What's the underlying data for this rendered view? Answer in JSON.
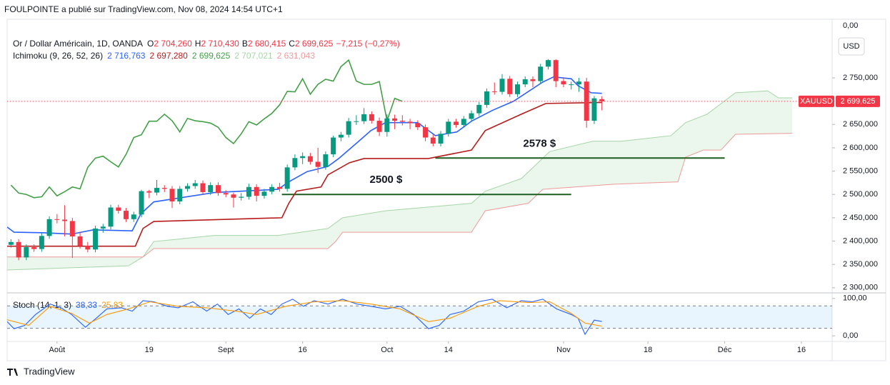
{
  "header": {
    "publisher": "FOULPOINTE a publié sur TradingView.com, Nov 08, 2024 14:54 UTC+1",
    "axis_top_label": "0,00",
    "currency_button": "USD",
    "brand": "TradingView"
  },
  "chart_data": {
    "type": "candlestick",
    "symbol_line": "Or / Dollar Américain, 1D, OANDA",
    "ohlc_legend": [
      {
        "key": "O",
        "text": "2 704,260"
      },
      {
        "key": "H",
        "text": "2 710,430"
      },
      {
        "key": "B",
        "text": "2 680,415"
      },
      {
        "key": "C",
        "text": "2 699,625"
      },
      {
        "text": "−7,215 (−0,27%)"
      }
    ],
    "indicator_label": "Ichimoku (9, 26, 52, 26)",
    "indicator_values": [
      {
        "text": "2 716,763",
        "color": "#2962ff"
      },
      {
        "text": "2 697,280",
        "color": "#b71c1c"
      },
      {
        "text": "2 699,625",
        "color": "#43a047"
      },
      {
        "text": "2 707,021",
        "color": "#a5d6a7"
      },
      {
        "text": "2 631,043",
        "color": "#ef9a9a"
      }
    ],
    "up_color": "#089981",
    "down_color": "#f23645",
    "x": [
      -6,
      -5,
      -4,
      -3,
      -2,
      -1,
      0,
      1,
      2,
      3,
      4,
      5,
      6,
      7,
      8,
      9,
      10,
      11,
      12,
      13,
      14,
      15,
      16,
      17,
      18,
      19,
      20,
      21,
      22,
      23,
      24,
      25,
      26,
      27,
      28,
      29,
      30,
      31,
      32,
      33,
      34,
      35,
      36,
      37,
      38,
      39,
      40,
      41,
      42,
      43,
      44,
      45,
      46,
      47,
      48,
      49,
      50,
      51,
      52,
      53,
      54,
      55,
      56,
      57,
      58,
      59,
      60,
      61,
      62,
      63,
      64,
      65,
      66,
      67,
      68,
      69,
      70,
      71
    ],
    "open": [
      2392,
      2398,
      2365,
      2387,
      2383,
      2411,
      2447,
      2446,
      2443,
      2410,
      2390,
      2382,
      2427,
      2431,
      2472,
      2465,
      2447,
      2457,
      2507,
      2504,
      2514,
      2512,
      2485,
      2512,
      2518,
      2524,
      2505,
      2520,
      2503,
      2500,
      2493,
      2495,
      2516,
      2497,
      2506,
      2516,
      2512,
      2558,
      2578,
      2582,
      2570,
      2559,
      2586,
      2622,
      2628,
      2657,
      2657,
      2672,
      2658,
      2634,
      2663,
      2658,
      2656,
      2653,
      2644,
      2622,
      2609,
      2630,
      2656,
      2649,
      2662,
      2674,
      2692,
      2721,
      2720,
      2748,
      2715,
      2736,
      2747,
      2743,
      2774,
      2788,
      2743,
      2736,
      2736,
      2742,
      2658,
      2704.26
    ],
    "high": [
      2404,
      2404,
      2393,
      2393,
      2417,
      2453,
      2458,
      2477,
      2450,
      2420,
      2398,
      2433,
      2437,
      2478,
      2478,
      2471,
      2463,
      2510,
      2510,
      2531,
      2520,
      2518,
      2518,
      2524,
      2531,
      2530,
      2526,
      2526,
      2509,
      2504,
      2503,
      2523,
      2522,
      2512,
      2522,
      2525,
      2564,
      2586,
      2590,
      2589,
      2600,
      2592,
      2626,
      2634,
      2664,
      2670,
      2685,
      2678,
      2665,
      2672,
      2671,
      2670,
      2662,
      2659,
      2650,
      2628,
      2636,
      2662,
      2662,
      2668,
      2680,
      2698,
      2727,
      2740,
      2758,
      2754,
      2742,
      2753,
      2753,
      2780,
      2790,
      2790,
      2750,
      2742,
      2750,
      2750,
      2711,
      2710.43
    ],
    "low": [
      2386,
      2359,
      2359,
      2377,
      2377,
      2405,
      2438,
      2410,
      2364,
      2384,
      2376,
      2376,
      2418,
      2425,
      2459,
      2441,
      2441,
      2451,
      2492,
      2498,
      2505,
      2471,
      2479,
      2506,
      2512,
      2499,
      2499,
      2497,
      2494,
      2472,
      2487,
      2489,
      2485,
      2491,
      2500,
      2506,
      2506,
      2552,
      2565,
      2564,
      2546,
      2553,
      2580,
      2614,
      2622,
      2649,
      2651,
      2652,
      2625,
      2624,
      2640,
      2648,
      2640,
      2638,
      2614,
      2603,
      2603,
      2624,
      2643,
      2643,
      2656,
      2668,
      2686,
      2714,
      2714,
      2709,
      2709,
      2730,
      2730,
      2737,
      2768,
      2730,
      2730,
      2725,
      2720,
      2643,
      2651,
      2680.415
    ],
    "close": [
      2398,
      2365,
      2387,
      2383,
      2411,
      2447,
      2446,
      2443,
      2410,
      2390,
      2382,
      2427,
      2431,
      2472,
      2465,
      2447,
      2457,
      2507,
      2504,
      2514,
      2512,
      2485,
      2512,
      2518,
      2524,
      2505,
      2520,
      2503,
      2500,
      2493,
      2495,
      2516,
      2497,
      2506,
      2516,
      2512,
      2558,
      2578,
      2582,
      2570,
      2559,
      2586,
      2622,
      2628,
      2657,
      2657,
      2672,
      2658,
      2634,
      2663,
      2658,
      2656,
      2653,
      2644,
      2622,
      2609,
      2630,
      2656,
      2649,
      2662,
      2674,
      2692,
      2721,
      2720,
      2748,
      2715,
      2736,
      2747,
      2743,
      2774,
      2788,
      2743,
      2736,
      2736,
      2742,
      2658,
      2706,
      2699.625
    ],
    "series": [
      {
        "color": "#2962ff",
        "x": [
          -6.5,
          -5.6,
          -1.9,
          1.9,
          4.7,
          9.8,
          10.9,
          12.6,
          20.5,
          28.8,
          30.2,
          32.6,
          35.3,
          36.7,
          39.1,
          40.9,
          42.8,
          47,
          49.3,
          52.1,
          54,
          56.7,
          59.5,
          63.3,
          64.7,
          67,
          67.9,
          69.6,
          71
        ],
        "values": [
          2430,
          2419,
          2418,
          2415,
          2424,
          2422,
          2458,
          2484,
          2504,
          2511,
          2527,
          2549,
          2560,
          2577,
          2611,
          2637,
          2654,
          2654,
          2626,
          2634,
          2657,
          2680,
          2700,
          2741,
          2752,
          2748,
          2733,
          2718,
          2716.763
        ]
      },
      {
        "color": "#b71c1c",
        "x": [
          -6.5,
          10.2,
          11.2,
          12.6,
          29.3,
          30.2,
          31.2,
          34.4,
          35.3,
          38.1,
          40,
          48.4,
          54,
          55.8,
          60.5,
          63.7,
          71
        ],
        "values": [
          2389,
          2389,
          2427,
          2442,
          2450,
          2481,
          2507,
          2516,
          2542,
          2568,
          2577,
          2577,
          2595,
          2637,
          2672,
          2695,
          2697.28
        ]
      },
      {
        "color": "#43a047",
        "x": [
          -6,
          -5,
          -4,
          -3,
          -2,
          -1,
          0,
          1,
          2,
          3,
          4,
          5,
          6,
          7,
          8,
          9,
          10,
          11,
          12,
          13,
          14,
          15,
          16,
          17,
          18,
          19,
          20,
          21,
          22,
          23,
          24,
          25,
          26,
          27,
          28,
          29,
          30,
          31,
          32,
          33,
          34,
          35,
          36,
          37,
          38,
          39,
          40,
          41,
          42,
          43,
          44,
          45
        ],
        "values": [
          2520,
          2503,
          2500,
          2493,
          2495,
          2516,
          2497,
          2506,
          2516,
          2512,
          2558,
          2578,
          2582,
          2570,
          2559,
          2586,
          2622,
          2628,
          2657,
          2657,
          2672,
          2658,
          2634,
          2663,
          2658,
          2656,
          2653,
          2644,
          2622,
          2609,
          2630,
          2656,
          2649,
          2662,
          2674,
          2692,
          2721,
          2720,
          2748,
          2715,
          2736,
          2747,
          2743,
          2774,
          2788,
          2743,
          2736,
          2736,
          2742,
          2658,
          2706,
          2699.625
        ]
      }
    ],
    "cloud": {
      "fill": "rgba(76,175,80,0.11)",
      "span_a": {
        "color": "#a5d6a7",
        "x": [
          -6.5,
          9.3,
          11.2,
          12.6,
          20.5,
          28.8,
          35.3,
          37.2,
          42.8,
          48.4,
          54,
          55.8,
          60.5,
          62.3,
          64.2,
          69.8,
          73.5,
          80,
          81.9,
          84.7,
          88.4,
          92.6,
          94,
          95.8
        ],
        "values": [
          2338,
          2347,
          2366,
          2399,
          2412,
          2412,
          2427,
          2450,
          2465,
          2473,
          2481,
          2507,
          2534,
          2562,
          2592,
          2614,
          2614,
          2626,
          2654,
          2672,
          2718,
          2722,
          2707,
          2707.021
        ]
      },
      "span_b": {
        "color": "#ef9a9a",
        "x": [
          -6.5,
          11.2,
          12.6,
          35.3,
          36.3,
          37.2,
          54,
          55.8,
          61.4,
          63.3,
          72.6,
          80.9,
          81.9,
          84.2,
          86.5,
          88.4,
          95.8
        ],
        "values": [
          2366,
          2366,
          2384,
          2384,
          2399,
          2419,
          2419,
          2465,
          2481,
          2511,
          2522,
          2527,
          2580,
          2595,
          2595,
          2629,
          2631.043
        ]
      }
    },
    "levels": [
      {
        "value": 2578,
        "label": "2578 $",
        "x": [
          49.3,
          87
        ],
        "color": "#1b5e20",
        "label_color": "#388e3c"
      },
      {
        "value": 2500,
        "label": "2500 $",
        "x": [
          29.3,
          67
        ],
        "color": "#1b5e20",
        "label_color": "#388e3c"
      }
    ],
    "price_tag": {
      "symbol": "XAUUSD",
      "label": "2 699,625",
      "color": "#f23645"
    },
    "xlim": [
      -6.5,
      101
    ],
    "xticks": [
      {
        "value": 0,
        "label": "Août"
      },
      {
        "value": 12,
        "label": "19"
      },
      {
        "value": 22,
        "label": "Sept"
      },
      {
        "value": 32,
        "label": "16"
      },
      {
        "value": 43,
        "label": "Oct"
      },
      {
        "value": 51,
        "label": "14"
      },
      {
        "value": 66,
        "label": "Nov"
      },
      {
        "value": 77,
        "label": "18"
      },
      {
        "value": 87,
        "label": "Déc"
      },
      {
        "value": 97,
        "label": "16"
      }
    ],
    "ylim": [
      2289,
      2874
    ],
    "yticks": [
      {
        "value": 2300,
        "label": "2 300,000"
      },
      {
        "value": 2350,
        "label": "2 350,000"
      },
      {
        "value": 2400,
        "label": "2 400,000"
      },
      {
        "value": 2450,
        "label": "2 450,000"
      },
      {
        "value": 2500,
        "label": "2 500,000"
      },
      {
        "value": 2550,
        "label": "2 550,000"
      },
      {
        "value": 2600,
        "label": "2 600,000"
      },
      {
        "value": 2650,
        "label": "2 650,000"
      },
      {
        "value": 2700,
        "label": "2 700,000"
      },
      {
        "value": 2750,
        "label": "2 750,000"
      }
    ],
    "stoch": {
      "label": "Stoch (14, 1, 3)",
      "ylim": [
        -15,
        113
      ],
      "yticks": [
        {
          "value": 0,
          "label": "0,00"
        },
        {
          "value": 100,
          "label": "100,00"
        }
      ],
      "bands": [
        20,
        80
      ],
      "band_fill": "rgba(33,150,243,0.1)",
      "series": [
        {
          "color": "#2962ff",
          "value_label": "38,33",
          "x": [
            -6.5,
            -5.6,
            -4.2,
            -2.8,
            -0.9,
            0.5,
            1.9,
            3.7,
            5.1,
            6.5,
            8.4,
            9.8,
            11.2,
            12.6,
            14.4,
            15.8,
            17.7,
            19.5,
            20.9,
            22.3,
            23.7,
            25.1,
            26.5,
            27.9,
            29.3,
            30.7,
            32.1,
            33.5,
            35.3,
            37.2,
            39.1,
            40.9,
            42.8,
            44.7,
            46.5,
            48.4,
            49.8,
            51.2,
            53,
            54.9,
            56.7,
            58.6,
            60.5,
            61.9,
            63.3,
            65.1,
            67,
            67.9,
            68.8,
            70,
            71
          ],
          "values": [
            38,
            19,
            28,
            57,
            85,
            75,
            57,
            23,
            47,
            72,
            75,
            66,
            94,
            91,
            79,
            75,
            91,
            66,
            85,
            57,
            72,
            47,
            72,
            57,
            85,
            98,
            79,
            94,
            85,
            98,
            85,
            79,
            72,
            79,
            57,
            19,
            28,
            57,
            66,
            91,
            98,
            75,
            94,
            91,
            98,
            72,
            57,
            47,
            4,
            42,
            38.33
          ]
        },
        {
          "color": "#ff9800",
          "value_label": "25,83",
          "x": [
            -6.5,
            -3.7,
            -0.9,
            1.9,
            4.2,
            6.5,
            9.3,
            12.1,
            15.8,
            19.5,
            23.3,
            26,
            29.8,
            33.5,
            37.2,
            40.9,
            44.7,
            48.4,
            51.2,
            54.9,
            57.7,
            61.4,
            64.2,
            67,
            68.8,
            71
          ],
          "values": [
            43,
            28,
            79,
            60,
            34,
            57,
            72,
            91,
            79,
            75,
            66,
            57,
            79,
            91,
            94,
            85,
            72,
            38,
            47,
            79,
            94,
            89,
            91,
            60,
            34,
            25.83
          ]
        }
      ]
    }
  }
}
